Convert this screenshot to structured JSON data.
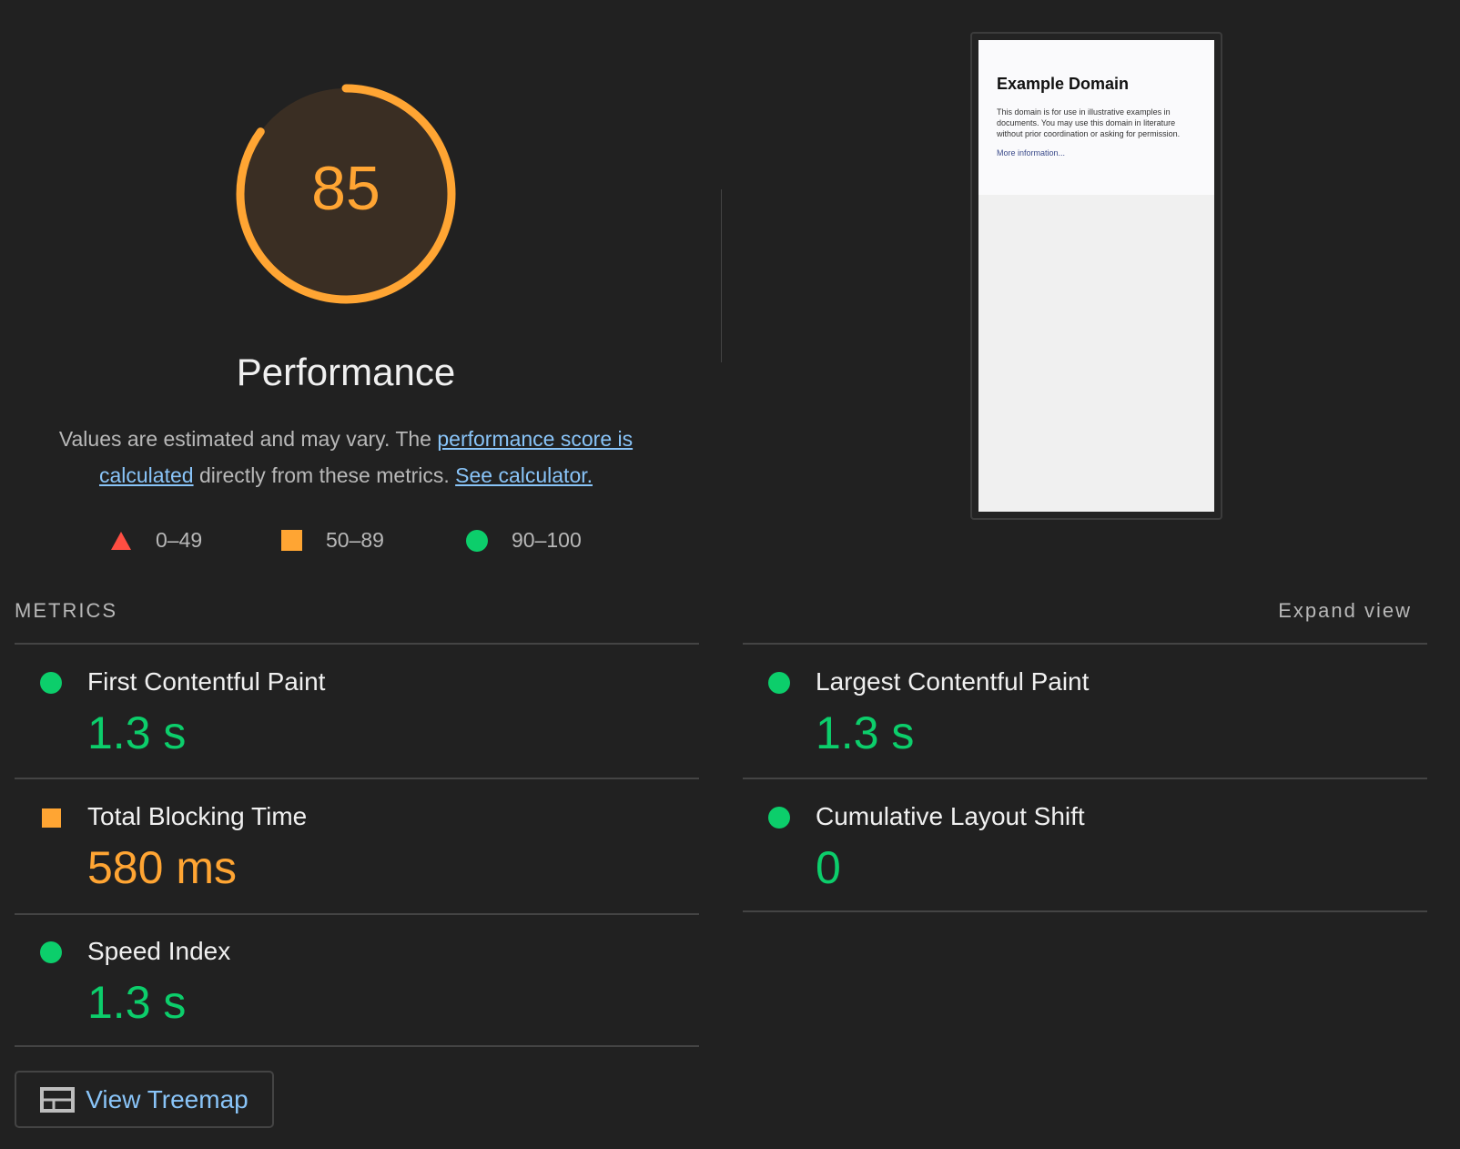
{
  "gauge": {
    "score": "85",
    "fraction": 0.85,
    "color": "#ffa533",
    "title": "Performance"
  },
  "description": {
    "text1": "Values are estimated and may vary. The ",
    "link1": "performance score is calculated",
    "text2": " directly from these metrics. ",
    "link2": "See calculator."
  },
  "legend": [
    {
      "icon": "triangle-icon",
      "label": "0–49",
      "color": "#ff4e42"
    },
    {
      "icon": "square-icon",
      "label": "50–89",
      "color": "#ffa533"
    },
    {
      "icon": "circle-icon",
      "label": "90–100",
      "color": "#0cce6b"
    }
  ],
  "screenshot": {
    "heading": "Example Domain",
    "body": "This domain is for use in illustrative examples in documents. You may use this domain in literature without prior coordination or asking for permission.",
    "link": "More information..."
  },
  "metrics": {
    "label": "METRICS",
    "expand": "Expand view",
    "items": [
      {
        "name": "First Contentful Paint",
        "value": "1.3 s",
        "status": "pass"
      },
      {
        "name": "Largest Contentful Paint",
        "value": "1.3 s",
        "status": "pass"
      },
      {
        "name": "Total Blocking Time",
        "value": "580 ms",
        "status": "average"
      },
      {
        "name": "Cumulative Layout Shift",
        "value": "0",
        "status": "pass"
      },
      {
        "name": "Speed Index",
        "value": "1.3 s",
        "status": "pass"
      }
    ]
  },
  "treemap": {
    "label": "View Treemap",
    "icon": "treemap-icon"
  }
}
